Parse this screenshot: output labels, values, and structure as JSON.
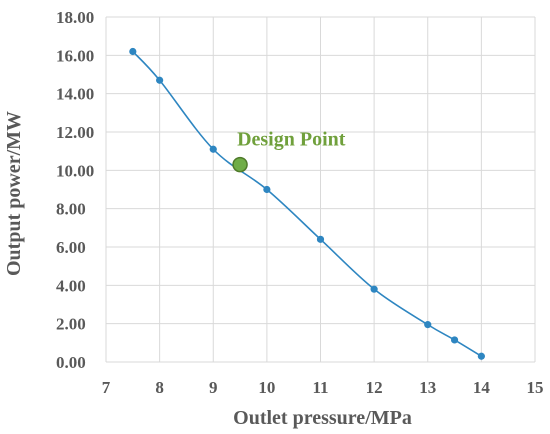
{
  "chart_data": {
    "type": "scatter",
    "xlabel": "Outlet pressure/MPa",
    "ylabel": "Output power/MW",
    "xlim": [
      7,
      15
    ],
    "ylim": [
      0,
      18
    ],
    "x_ticks": [
      "7",
      "8",
      "9",
      "10",
      "11",
      "12",
      "13",
      "14",
      "15"
    ],
    "y_ticks": [
      "0.00",
      "2.00",
      "4.00",
      "6.00",
      "8.00",
      "10.00",
      "12.00",
      "14.00",
      "16.00",
      "18.00"
    ],
    "grid": true,
    "series": [
      {
        "color": "#2e86c1",
        "smooth": true,
        "x": [
          7.5,
          8,
          9,
          10,
          11,
          12,
          13,
          13.5,
          14
        ],
        "y": [
          16.2,
          14.7,
          11.1,
          9.0,
          6.4,
          3.8,
          1.95,
          1.15,
          0.3
        ]
      }
    ],
    "design_point": {
      "x": 9.5,
      "y": 10.3,
      "color": "#70ad47",
      "edge_color": "#4f7a2a"
    },
    "annotations": [
      {
        "text": "Design Point",
        "x": 9.5,
        "y": 11.3,
        "color": "#70a03c"
      }
    ]
  }
}
